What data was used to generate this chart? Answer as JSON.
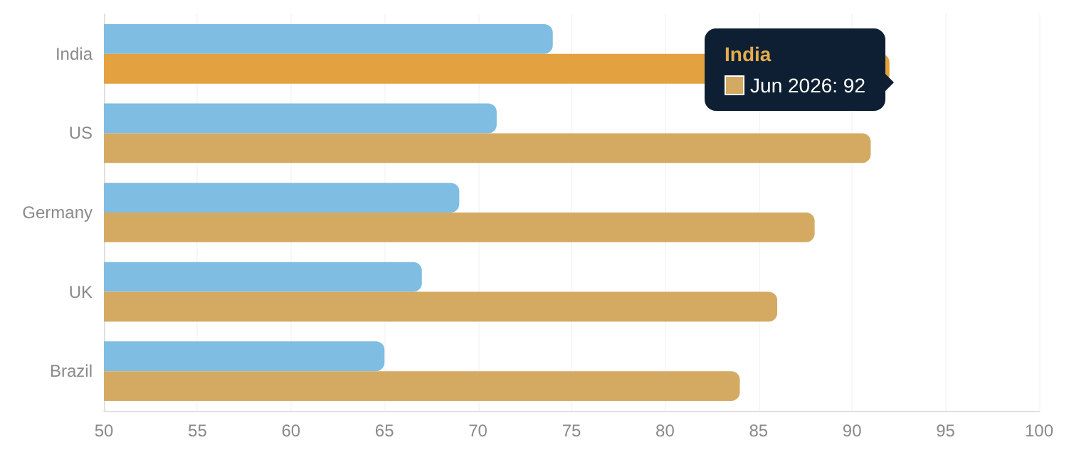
{
  "chart_data": {
    "type": "bar",
    "orientation": "horizontal",
    "categories": [
      "India",
      "US",
      "Germany",
      "UK",
      "Brazil"
    ],
    "series": [
      {
        "color": "#7fbde2",
        "values": [
          74,
          71,
          69,
          67,
          65
        ]
      },
      {
        "color": "#d4aa63",
        "colors": [
          "#e3a23f",
          "#d4aa63",
          "#d4aa63",
          "#d4aa63",
          "#d4aa63"
        ],
        "values": [
          92,
          91,
          88,
          86,
          84
        ]
      }
    ],
    "xlim": [
      50,
      100
    ],
    "xticks": [
      50,
      55,
      60,
      65,
      70,
      75,
      80,
      85,
      90,
      95,
      100
    ],
    "grid": "x",
    "annotations": [
      "India",
      "Jun 2026: 92"
    ]
  }
}
